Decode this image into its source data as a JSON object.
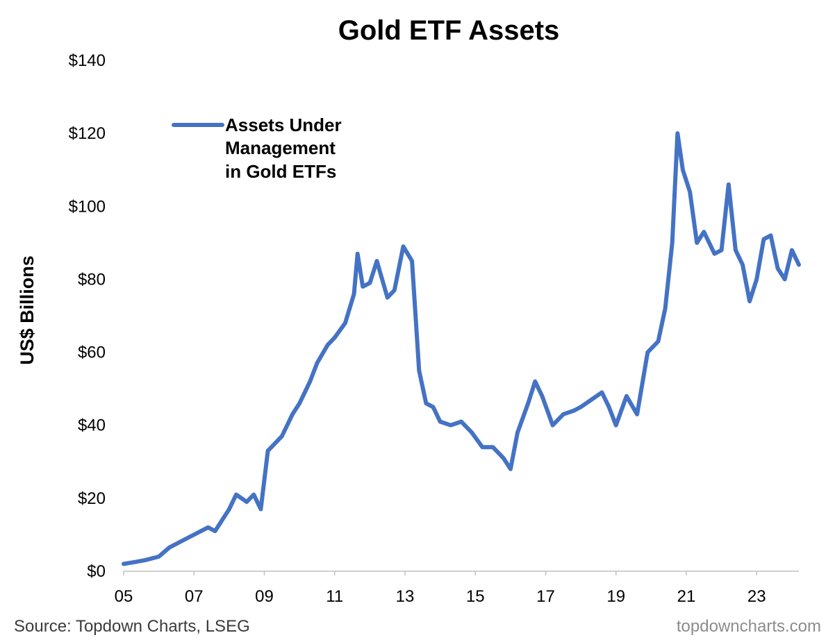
{
  "chart_data": {
    "type": "line",
    "title": "Gold ETF Assets",
    "ylabel": "US$ Billions",
    "xlabel": "",
    "ylim": [
      0,
      140
    ],
    "xlim": [
      2005.0,
      2024.2
    ],
    "ytick_values": [
      0,
      20,
      40,
      60,
      80,
      100,
      120,
      140
    ],
    "ytick_labels": [
      "$0",
      "$20",
      "$40",
      "$60",
      "$80",
      "$100",
      "$120",
      "$140"
    ],
    "xtick_values": [
      2005,
      2007,
      2009,
      2011,
      2013,
      2015,
      2017,
      2019,
      2021,
      2023
    ],
    "xtick_labels": [
      "05",
      "07",
      "09",
      "11",
      "13",
      "15",
      "17",
      "19",
      "21",
      "23"
    ],
    "grid": false,
    "legend_position": "top-left",
    "series": [
      {
        "name": "Assets Under Management in Gold ETFs",
        "color": "#4472C4",
        "x": [
          2005.0,
          2005.3,
          2005.6,
          2006.0,
          2006.3,
          2006.6,
          2007.0,
          2007.4,
          2007.6,
          2008.0,
          2008.2,
          2008.5,
          2008.7,
          2008.9,
          2009.1,
          2009.2,
          2009.5,
          2009.8,
          2010.0,
          2010.3,
          2010.5,
          2010.8,
          2011.0,
          2011.3,
          2011.55,
          2011.65,
          2011.8,
          2012.0,
          2012.2,
          2012.5,
          2012.7,
          2012.95,
          2013.2,
          2013.4,
          2013.6,
          2013.8,
          2014.0,
          2014.3,
          2014.6,
          2014.9,
          2015.2,
          2015.5,
          2015.8,
          2016.0,
          2016.2,
          2016.5,
          2016.7,
          2016.9,
          2017.2,
          2017.5,
          2017.8,
          2018.0,
          2018.3,
          2018.6,
          2018.8,
          2019.0,
          2019.3,
          2019.6,
          2019.9,
          2020.2,
          2020.4,
          2020.6,
          2020.75,
          2020.9,
          2021.1,
          2021.3,
          2021.5,
          2021.8,
          2022.0,
          2022.2,
          2022.4,
          2022.6,
          2022.8,
          2023.0,
          2023.2,
          2023.4,
          2023.6,
          2023.8,
          2024.0,
          2024.2
        ],
        "values": [
          2,
          2.5,
          3,
          4,
          6.5,
          8,
          10,
          12,
          11,
          17,
          21,
          19,
          21,
          17,
          33,
          34,
          37,
          43,
          46,
          52,
          57,
          62,
          64,
          68,
          76,
          87,
          78,
          79,
          85,
          75,
          77,
          89,
          85,
          55,
          46,
          45,
          41,
          40,
          41,
          38,
          34,
          34,
          31,
          28,
          38,
          46,
          52,
          48,
          40,
          43,
          44,
          45,
          47,
          49,
          45,
          40,
          48,
          43,
          60,
          63,
          72,
          90,
          120,
          110,
          104,
          90,
          93,
          87,
          88,
          106,
          88,
          84,
          74,
          80,
          91,
          92,
          83,
          80,
          88,
          84
        ]
      }
    ]
  },
  "legend": {
    "line1": "Assets Under",
    "line2": "Management",
    "line3": "in Gold ETFs"
  },
  "footer": {
    "source": "Source: Topdown Charts, LSEG",
    "brand": "topdowncharts.com"
  }
}
